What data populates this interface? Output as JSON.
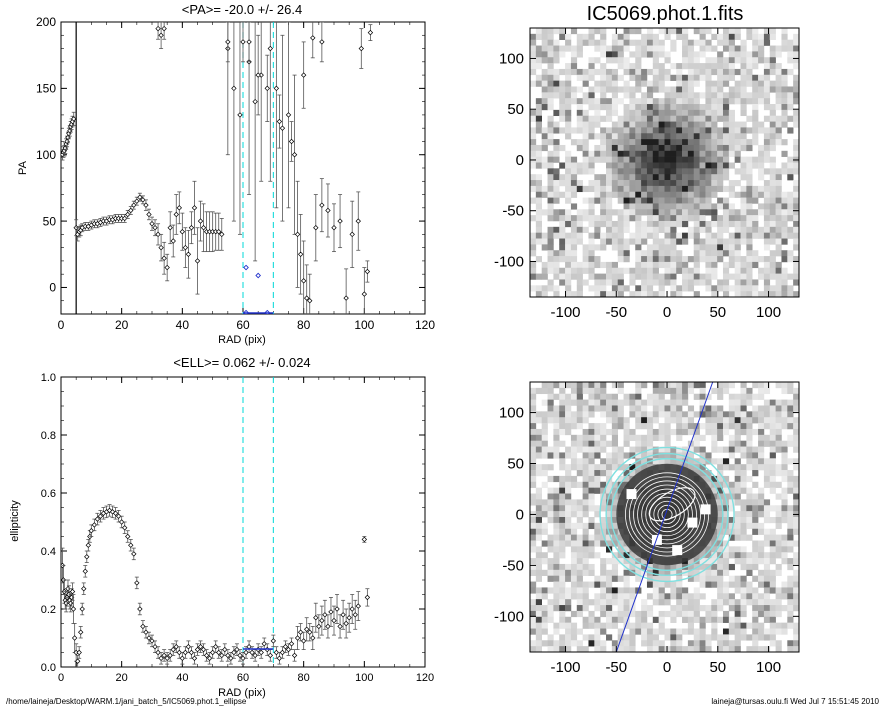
{
  "footer": {
    "path": "/home/laineja/Desktop/WARM.1/jani_batch_5/IC5069.phot.1_ellipse",
    "user_stamp": "laineja@tursas.oulu.fi  Wed Jul  7 15:51:45 2010"
  },
  "chart_data": [
    {
      "id": "pa",
      "type": "scatter",
      "title": "<PA>= -20.0 +/-  26.4",
      "xlabel": "RAD (pix)",
      "ylabel": "PA",
      "xlim": [
        0,
        120
      ],
      "ylim": [
        -20,
        200
      ],
      "xticks": [
        0,
        20,
        40,
        60,
        80,
        100,
        120
      ],
      "yticks": [
        0,
        50,
        100,
        150,
        200
      ],
      "vlines": [
        60,
        70
      ],
      "mean_segment": {
        "x": [
          60,
          70
        ],
        "y": -20
      },
      "highlight_points": [
        [
          61,
          15
        ],
        [
          61,
          -19
        ],
        [
          65,
          9
        ],
        [
          68,
          -19
        ]
      ],
      "points": [
        [
          0.5,
          100,
          4
        ],
        [
          0.8,
          102,
          4
        ],
        [
          1.1,
          103,
          4
        ],
        [
          1.4,
          105,
          4
        ],
        [
          1.7,
          108,
          4
        ],
        [
          2.0,
          110,
          4
        ],
        [
          2.3,
          113,
          4
        ],
        [
          2.6,
          116,
          4
        ],
        [
          2.9,
          118,
          4
        ],
        [
          3.2,
          121,
          4
        ],
        [
          3.5,
          123,
          4
        ],
        [
          3.8,
          125,
          4
        ],
        [
          4.2,
          127,
          5
        ],
        [
          5.0,
          45,
          6
        ],
        [
          5.5,
          40,
          5
        ],
        [
          6.0,
          42,
          4
        ],
        [
          6.5,
          43,
          4
        ],
        [
          7,
          45,
          3
        ],
        [
          8,
          46,
          3
        ],
        [
          9,
          46,
          3
        ],
        [
          10,
          47,
          3
        ],
        [
          11,
          48,
          3
        ],
        [
          12,
          48,
          3
        ],
        [
          13,
          49,
          3
        ],
        [
          14,
          50,
          3
        ],
        [
          15,
          50,
          3
        ],
        [
          16,
          51,
          3
        ],
        [
          17,
          51,
          3
        ],
        [
          18,
          52,
          3
        ],
        [
          19,
          52,
          3
        ],
        [
          20,
          52,
          3
        ],
        [
          21,
          52,
          3
        ],
        [
          22,
          55,
          3
        ],
        [
          23,
          58,
          3
        ],
        [
          24,
          62,
          3
        ],
        [
          25,
          65,
          3
        ],
        [
          26,
          68,
          3
        ],
        [
          27,
          66,
          3
        ],
        [
          28,
          62,
          4
        ],
        [
          29,
          55,
          4
        ],
        [
          30,
          48,
          5
        ],
        [
          31,
          45,
          6
        ],
        [
          32,
          40,
          8
        ],
        [
          33,
          30,
          10
        ],
        [
          34,
          22,
          12
        ],
        [
          35,
          15,
          10
        ],
        [
          36,
          45,
          12
        ],
        [
          37,
          35,
          12
        ],
        [
          38,
          55,
          15
        ],
        [
          39,
          60,
          12
        ],
        [
          40,
          42,
          14
        ],
        [
          41,
          30,
          15
        ],
        [
          42,
          25,
          18
        ],
        [
          43,
          45,
          12
        ],
        [
          44,
          60,
          20
        ],
        [
          45,
          20,
          25
        ],
        [
          46,
          50,
          15
        ],
        [
          47,
          45,
          18
        ],
        [
          48,
          42,
          15
        ],
        [
          49,
          42,
          15
        ],
        [
          50,
          42,
          15
        ],
        [
          51,
          42,
          14
        ],
        [
          52,
          42,
          14
        ],
        [
          53,
          40,
          12
        ],
        [
          55,
          180,
          80
        ],
        [
          57,
          150,
          100
        ],
        [
          59,
          130,
          90
        ],
        [
          62,
          170,
          100
        ],
        [
          64,
          140,
          120
        ],
        [
          66,
          160,
          80
        ],
        [
          69,
          180,
          100
        ],
        [
          71,
          150,
          90
        ],
        [
          73,
          120,
          70
        ],
        [
          75,
          130,
          70
        ],
        [
          77,
          100,
          60
        ],
        [
          78,
          40,
          40
        ],
        [
          79,
          25,
          30
        ],
        [
          80,
          5,
          30
        ],
        [
          81,
          -8,
          25
        ],
        [
          82,
          -10,
          20
        ],
        [
          84,
          45,
          25
        ],
        [
          86,
          62,
          20
        ],
        [
          88,
          58,
          20
        ],
        [
          90,
          45,
          18
        ],
        [
          92,
          50,
          20
        ],
        [
          94,
          -8,
          22
        ],
        [
          96,
          40,
          25
        ],
        [
          98,
          50,
          22
        ],
        [
          100,
          -5,
          20
        ],
        [
          101,
          12,
          8
        ],
        [
          32,
          195,
          8
        ],
        [
          33,
          190,
          10
        ],
        [
          34,
          195,
          8
        ],
        [
          55,
          185,
          15
        ],
        [
          60,
          185,
          15
        ],
        [
          62,
          185,
          15
        ],
        [
          65,
          160,
          30
        ],
        [
          68,
          150,
          25
        ],
        [
          72,
          125,
          20
        ],
        [
          76,
          110,
          15
        ],
        [
          80,
          160,
          25
        ],
        [
          83,
          188,
          15
        ],
        [
          86,
          185,
          15
        ],
        [
          99,
          180,
          15
        ],
        [
          102,
          192,
          6
        ]
      ],
      "vertical_run": {
        "x": 5,
        "y_from": -20,
        "y_to": 200
      }
    },
    {
      "id": "ell",
      "type": "scatter",
      "title": "<ELL>= 0.062 +/-  0.024",
      "xlabel": "RAD (pix)",
      "ylabel": "ellipticity",
      "xlim": [
        0,
        120
      ],
      "ylim": [
        0,
        1.0
      ],
      "xticks": [
        0,
        20,
        40,
        60,
        80,
        100,
        120
      ],
      "yticks": [
        0.0,
        0.2,
        0.4,
        0.6,
        0.8,
        1.0
      ],
      "vlines": [
        60,
        70
      ],
      "mean_segment": {
        "x": [
          60,
          70
        ],
        "y": 0.062
      },
      "points": [
        [
          0.5,
          0.35,
          0.06
        ],
        [
          0.8,
          0.3,
          0.05
        ],
        [
          1.1,
          0.26,
          0.04
        ],
        [
          1.4,
          0.23,
          0.03
        ],
        [
          1.7,
          0.22,
          0.03
        ],
        [
          2.0,
          0.24,
          0.03
        ],
        [
          2.3,
          0.27,
          0.03
        ],
        [
          2.6,
          0.25,
          0.03
        ],
        [
          2.9,
          0.23,
          0.03
        ],
        [
          3.2,
          0.22,
          0.03
        ],
        [
          3.5,
          0.24,
          0.03
        ],
        [
          3.8,
          0.26,
          0.03
        ],
        [
          4.1,
          0.2,
          0.05
        ],
        [
          4.5,
          0.1,
          0.05
        ],
        [
          5,
          0.05,
          0.03
        ],
        [
          5.5,
          0.02,
          0.02
        ],
        [
          6,
          0.05,
          0.02
        ],
        [
          6.5,
          0.12,
          0.02
        ],
        [
          7,
          0.2,
          0.02
        ],
        [
          7.5,
          0.27,
          0.02
        ],
        [
          8,
          0.33,
          0.02
        ],
        [
          8.5,
          0.38,
          0.02
        ],
        [
          9,
          0.42,
          0.02
        ],
        [
          9.5,
          0.45,
          0.02
        ],
        [
          10,
          0.47,
          0.02
        ],
        [
          11,
          0.49,
          0.02
        ],
        [
          12,
          0.51,
          0.02
        ],
        [
          13,
          0.52,
          0.02
        ],
        [
          14,
          0.53,
          0.02
        ],
        [
          15,
          0.535,
          0.02
        ],
        [
          16,
          0.54,
          0.02
        ],
        [
          17,
          0.535,
          0.02
        ],
        [
          18,
          0.53,
          0.02
        ],
        [
          19,
          0.52,
          0.02
        ],
        [
          20,
          0.5,
          0.02
        ],
        [
          21,
          0.48,
          0.02
        ],
        [
          22,
          0.45,
          0.02
        ],
        [
          23,
          0.42,
          0.02
        ],
        [
          24,
          0.39,
          0.02
        ],
        [
          25,
          0.29,
          0.02
        ],
        [
          26,
          0.2,
          0.02
        ],
        [
          27,
          0.14,
          0.02
        ],
        [
          28,
          0.12,
          0.02
        ],
        [
          29,
          0.1,
          0.02
        ],
        [
          30,
          0.09,
          0.02
        ],
        [
          31,
          0.07,
          0.02
        ],
        [
          32,
          0.05,
          0.02
        ],
        [
          33,
          0.03,
          0.02
        ],
        [
          34,
          0.04,
          0.02
        ],
        [
          35,
          0.03,
          0.02
        ],
        [
          36,
          0.04,
          0.02
        ],
        [
          37,
          0.06,
          0.02
        ],
        [
          38,
          0.07,
          0.02
        ],
        [
          39,
          0.05,
          0.02
        ],
        [
          40,
          0.03,
          0.02
        ],
        [
          41,
          0.05,
          0.02
        ],
        [
          42,
          0.07,
          0.02
        ],
        [
          43,
          0.05,
          0.02
        ],
        [
          44,
          0.03,
          0.02
        ],
        [
          45,
          0.06,
          0.02
        ],
        [
          46,
          0.07,
          0.02
        ],
        [
          47,
          0.06,
          0.02
        ],
        [
          48,
          0.04,
          0.02
        ],
        [
          49,
          0.03,
          0.02
        ],
        [
          50,
          0.05,
          0.02
        ],
        [
          51,
          0.07,
          0.02
        ],
        [
          52,
          0.05,
          0.02
        ],
        [
          53,
          0.04,
          0.02
        ],
        [
          54,
          0.06,
          0.02
        ],
        [
          55,
          0.04,
          0.02
        ],
        [
          56,
          0.03,
          0.02
        ],
        [
          57,
          0.05,
          0.02
        ],
        [
          58,
          0.06,
          0.02
        ],
        [
          59,
          0.04,
          0.02
        ],
        [
          60,
          0.03,
          0.02
        ],
        [
          61,
          0.05,
          0.02
        ],
        [
          62,
          0.07,
          0.02
        ],
        [
          63,
          0.05,
          0.02
        ],
        [
          64,
          0.04,
          0.02
        ],
        [
          65,
          0.06,
          0.02
        ],
        [
          66,
          0.05,
          0.02
        ],
        [
          67,
          0.08,
          0.02
        ],
        [
          68,
          0.06,
          0.02
        ],
        [
          69,
          0.04,
          0.02
        ],
        [
          70,
          0.09,
          0.02
        ],
        [
          71,
          0.05,
          0.02
        ],
        [
          72,
          0.03,
          0.02
        ],
        [
          73,
          0.05,
          0.02
        ],
        [
          74,
          0.07,
          0.02
        ],
        [
          75,
          0.06,
          0.02
        ],
        [
          76,
          0.08,
          0.02
        ],
        [
          77,
          0.04,
          0.02
        ],
        [
          78,
          0.1,
          0.04
        ],
        [
          79,
          0.12,
          0.03
        ],
        [
          80,
          0.09,
          0.03
        ],
        [
          81,
          0.13,
          0.04
        ],
        [
          82,
          0.12,
          0.03
        ],
        [
          83,
          0.1,
          0.04
        ],
        [
          84,
          0.17,
          0.05
        ],
        [
          85,
          0.14,
          0.04
        ],
        [
          86,
          0.16,
          0.05
        ],
        [
          87,
          0.18,
          0.05
        ],
        [
          88,
          0.14,
          0.04
        ],
        [
          89,
          0.19,
          0.05
        ],
        [
          90,
          0.16,
          0.05
        ],
        [
          91,
          0.2,
          0.05
        ],
        [
          92,
          0.14,
          0.04
        ],
        [
          93,
          0.18,
          0.05
        ],
        [
          94,
          0.15,
          0.05
        ],
        [
          95,
          0.17,
          0.05
        ],
        [
          96,
          0.2,
          0.05
        ],
        [
          97,
          0.18,
          0.05
        ],
        [
          98,
          0.21,
          0.05
        ],
        [
          100,
          0.44,
          0.01
        ],
        [
          101,
          0.24,
          0.03
        ]
      ],
      "vertical_run": {
        "x": 5,
        "y_from": 0.0,
        "y_to": 0.02
      }
    },
    {
      "id": "img1",
      "type": "heatmap",
      "title": "IC5069.phot.1.fits",
      "xlim": [
        -135,
        130
      ],
      "ylim": [
        -135,
        130
      ],
      "xticks": [
        -100,
        -50,
        0,
        50,
        100
      ],
      "yticks": [
        -100,
        -50,
        0,
        50,
        100
      ],
      "galaxy": {
        "cx": 0,
        "cy": 0,
        "core_radius": 45
      },
      "seed": 7
    },
    {
      "id": "img2",
      "type": "heatmap",
      "title": "",
      "xlim": [
        -135,
        130
      ],
      "ylim": [
        -135,
        130
      ],
      "xticks": [
        -100,
        -50,
        0,
        50,
        100
      ],
      "yticks": [
        -100,
        -50,
        0,
        50,
        100
      ],
      "galaxy": {
        "cx": 0,
        "cy": 0,
        "core_radius": 45
      },
      "seed": 13,
      "contours_r": [
        5,
        9,
        13,
        17,
        21,
        25,
        29,
        33,
        37,
        41
      ],
      "outer_ellipses_r": [
        55,
        60,
        66
      ],
      "pa_line": [
        [
          -50,
          -135
        ],
        [
          45,
          130
        ]
      ],
      "inner_ellipse": {
        "cx": 5,
        "cy": 10,
        "a": 25,
        "b": 12,
        "angle_deg": 30
      }
    }
  ]
}
